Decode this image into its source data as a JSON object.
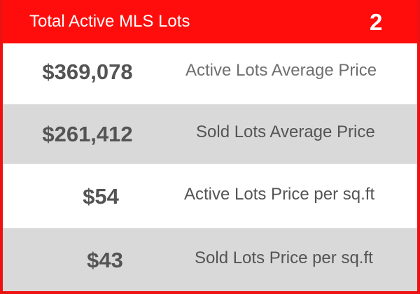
{
  "header": {
    "title": "Total Active MLS Lots",
    "count": "2"
  },
  "rows": [
    {
      "value": "$369,078",
      "label": "Active Lots Average Price"
    },
    {
      "value": "$261,412",
      "label": "Sold Lots Average Price"
    },
    {
      "value": "$54",
      "label": "Active Lots Price per sq.ft"
    },
    {
      "value": "$43",
      "label": "Sold Lots Price per sq.ft"
    }
  ],
  "colors": {
    "header_red": "#ff0d0d",
    "row_gray": "#d9d9d9",
    "value_text": "#545454"
  }
}
